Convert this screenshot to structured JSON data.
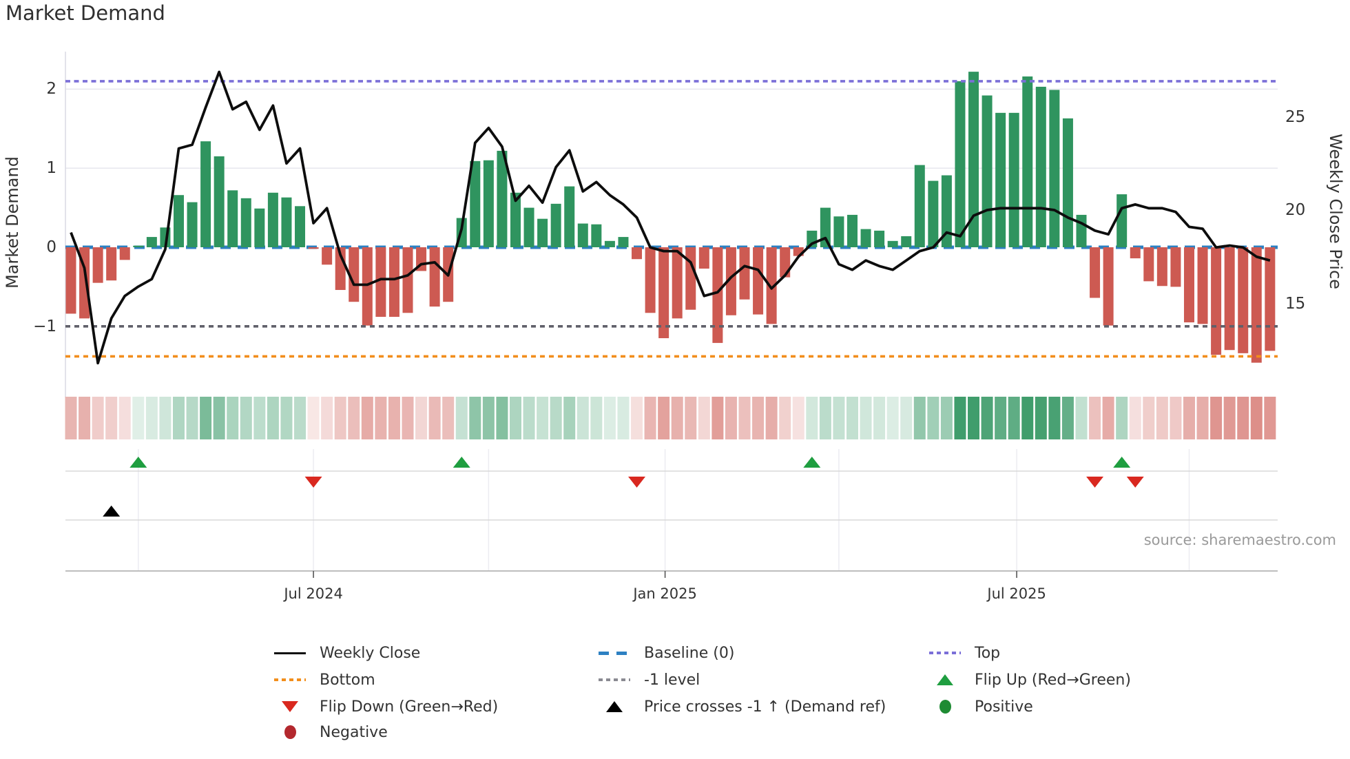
{
  "title": "Market Demand",
  "source": "source: sharemaestro.com",
  "axes": {
    "left_title": "Market Demand",
    "right_title": "Weekly Close Price",
    "left_ticks": [
      {
        "label": "2",
        "value": 2
      },
      {
        "label": "1",
        "value": 1
      },
      {
        "label": "0",
        "value": 0
      },
      {
        "label": "−1",
        "value": -1
      }
    ],
    "right_ticks": [
      {
        "label": "25",
        "value": 25
      },
      {
        "label": "20",
        "value": 20
      },
      {
        "label": "15",
        "value": 15
      }
    ],
    "x_ticks": [
      {
        "label": "Jul 2024",
        "week": 18
      },
      {
        "label": "Jan 2025",
        "week": 44.1
      },
      {
        "label": "Jul 2025",
        "week": 70.2
      }
    ],
    "quarter_gridline_weeks": [
      5,
      18,
      31,
      44.1,
      57,
      70.2,
      83
    ]
  },
  "ref_lines": {
    "top": {
      "label": "Top",
      "value": 2.1
    },
    "baseline": {
      "label": "Baseline (0)",
      "value": 0
    },
    "minus_one": {
      "label": "-1 level",
      "value": -1
    },
    "bottom": {
      "label": "Bottom",
      "value": -1.38
    }
  },
  "chart_data": {
    "type": "bar+line",
    "x_unit": "week",
    "demand_axis_ticks": [
      2,
      1,
      0,
      -1
    ],
    "price_axis_ticks": [
      25,
      20,
      15
    ],
    "demand": [
      -0.84,
      -0.9,
      -0.45,
      -0.42,
      -0.16,
      0.02,
      0.13,
      0.25,
      0.66,
      0.57,
      1.34,
      1.15,
      0.72,
      0.62,
      0.49,
      0.69,
      0.63,
      0.52,
      -0.02,
      -0.22,
      -0.54,
      -0.69,
      -0.99,
      -0.88,
      -0.88,
      -0.83,
      -0.3,
      -0.75,
      -0.69,
      0.37,
      1.09,
      1.1,
      1.22,
      0.69,
      0.5,
      0.36,
      0.55,
      0.77,
      0.3,
      0.29,
      0.08,
      0.13,
      -0.15,
      -0.83,
      -1.15,
      -0.9,
      -0.79,
      -0.27,
      -1.21,
      -0.86,
      -0.66,
      -0.85,
      -0.97,
      -0.38,
      -0.11,
      0.21,
      0.5,
      0.39,
      0.41,
      0.23,
      0.21,
      0.08,
      0.14,
      1.04,
      0.84,
      0.91,
      2.1,
      2.22,
      1.92,
      1.7,
      1.7,
      2.16,
      2.03,
      1.99,
      1.63,
      0.41,
      -0.64,
      -0.99,
      0.67,
      -0.14,
      -0.43,
      -0.49,
      -0.5,
      -0.95,
      -0.97,
      -1.36,
      -1.3,
      -1.34,
      -1.46,
      -1.31
    ],
    "weekly_close": [
      18.8,
      16.9,
      11.8,
      14.2,
      15.4,
      15.9,
      16.3,
      17.9,
      23.3,
      23.5,
      25.5,
      27.4,
      25.4,
      25.8,
      24.3,
      25.6,
      22.5,
      23.3,
      19.3,
      20.1,
      17.6,
      16.0,
      16.0,
      16.3,
      16.3,
      16.5,
      17.1,
      17.2,
      16.5,
      19.0,
      23.6,
      24.4,
      23.4,
      20.5,
      21.3,
      20.4,
      22.3,
      23.2,
      21.0,
      21.5,
      20.8,
      20.3,
      19.6,
      18.0,
      17.8,
      17.8,
      17.2,
      15.4,
      15.6,
      16.4,
      17.0,
      16.8,
      15.8,
      16.5,
      17.5,
      18.2,
      18.5,
      17.1,
      16.8,
      17.3,
      17.0,
      16.8,
      17.3,
      17.8,
      18.0,
      18.8,
      18.6,
      19.7,
      20.0,
      20.1,
      20.1,
      20.1,
      20.1,
      20.0,
      19.6,
      19.3,
      18.9,
      18.7,
      20.1,
      20.3,
      20.1,
      20.1,
      19.9,
      19.1,
      19.0,
      18.0,
      18.1,
      18.0,
      17.5,
      17.3
    ],
    "markers": {
      "flip_up_weeks": [
        5,
        29,
        55,
        78
      ],
      "flip_down_weeks": [
        18,
        42,
        76,
        79
      ],
      "price_cross_weeks": [
        3
      ]
    }
  },
  "legend": {
    "items": [
      {
        "swatch": "line-black",
        "label": "Weekly Close",
        "col": 0,
        "row": 0
      },
      {
        "swatch": "dash-blue",
        "label": "Baseline (0)",
        "col": 1,
        "row": 0
      },
      {
        "swatch": "dot-purple",
        "label": "Top",
        "col": 2,
        "row": 0
      },
      {
        "swatch": "dot-orange",
        "label": "Bottom",
        "col": 0,
        "row": 1
      },
      {
        "swatch": "dot-gray",
        "label": "-1 level",
        "col": 1,
        "row": 1
      },
      {
        "swatch": "tri-up-green",
        "label": "Flip Up (Red→Green)",
        "col": 2,
        "row": 1
      },
      {
        "swatch": "tri-down-red",
        "label": "Flip Down (Green→Red)",
        "col": 0,
        "row": 2
      },
      {
        "swatch": "tri-up-black",
        "label": "Price crosses -1 ↑ (Demand ref)",
        "col": 1,
        "row": 2
      },
      {
        "swatch": "circle-green",
        "label": "Positive",
        "col": 2,
        "row": 2
      },
      {
        "swatch": "circle-red",
        "label": "Negative",
        "col": 0,
        "row": 3
      }
    ]
  },
  "colors": {
    "bar_positive": "#2f945f",
    "bar_negative": "#cd5a52",
    "price_line": "#0d0d0d",
    "baseline": "#2d80c2",
    "top_line": "#7b6fd8",
    "bottom_line": "#f28e1c",
    "minus_one_line": "#60606a",
    "flip_up": "#1f9e40",
    "flip_down": "#d9281f",
    "price_cross": "#000000",
    "positive_dot": "#1e8b33",
    "negative_dot": "#b3282e",
    "grid": "#e8e8ef",
    "panel_line": "#d8d8d8",
    "axis_line": "#b5b5b5",
    "axis_text": "#333333",
    "source_text": "#9a9a9a"
  }
}
